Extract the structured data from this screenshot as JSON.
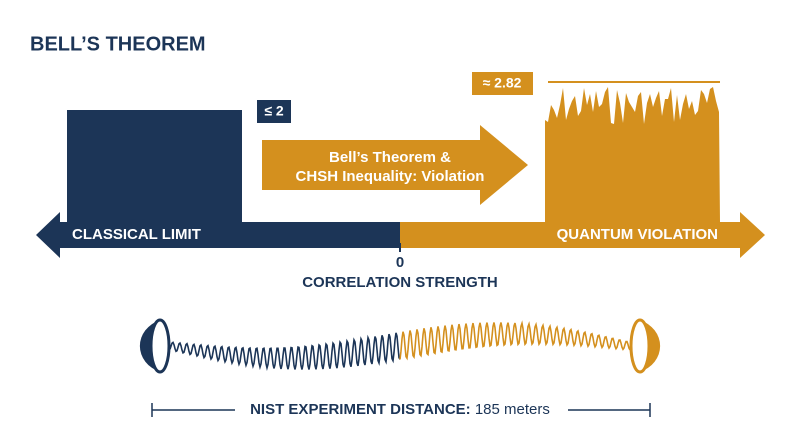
{
  "header": {
    "title": "BELL’S THEOREM"
  },
  "classical": {
    "bound": "≤ 2",
    "label": "CLASSICAL LIMIT"
  },
  "quantum": {
    "bound": "≈ 2.82",
    "label": "QUANTUM VIOLATION"
  },
  "center_arrow": {
    "lines": [
      "Bell’s Theorem &",
      "CHSH Inequality: Violation"
    ]
  },
  "axis": {
    "origin": "0",
    "label": "CORRELATION STRENGTH"
  },
  "footer": {
    "label": "NIST EXPERIMENT DISTANCE:",
    "value": "185 meters"
  }
}
